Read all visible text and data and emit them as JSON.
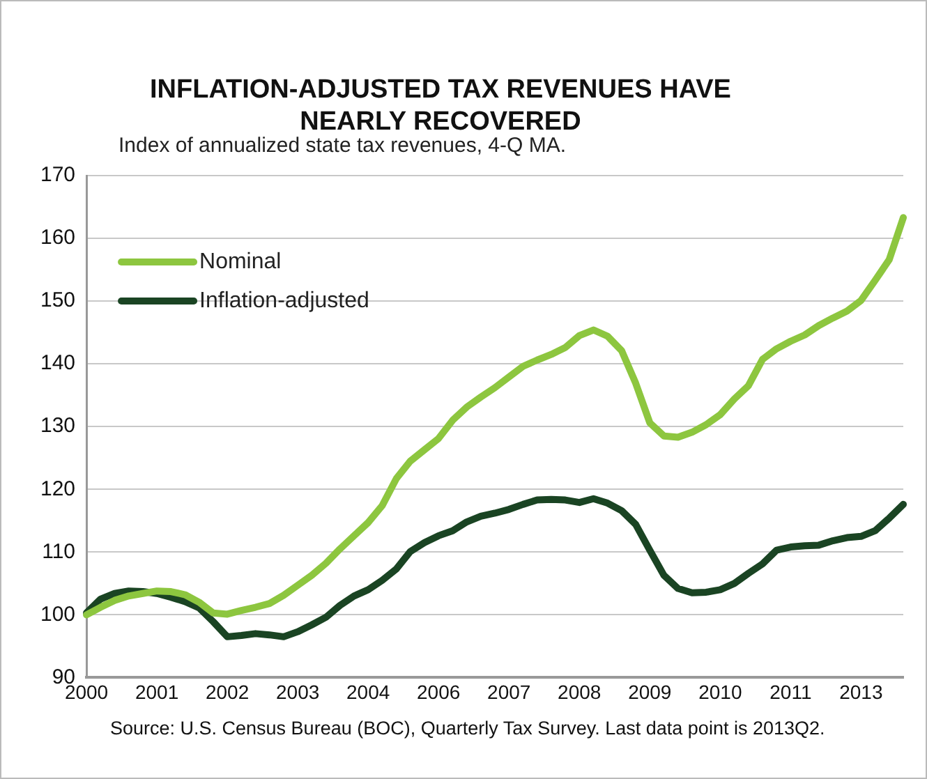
{
  "chart_data": {
    "type": "line",
    "title": "INFLATION-ADJUSTED TAX REVENUES HAVE NEARLY RECOVERED",
    "subtitle": "Index of annualized state tax revenues, 4-Q MA.",
    "annotations": [
      "Source: U.S. Census Bureau (BOC), Quarterly Tax Survey. Last data point is 2013Q2."
    ],
    "categories": [
      "2000",
      null,
      null,
      null,
      null,
      "2001",
      null,
      null,
      null,
      null,
      "2002",
      null,
      null,
      null,
      null,
      "2003",
      null,
      null,
      null,
      null,
      "2004",
      null,
      null,
      null,
      null,
      "2006",
      null,
      null,
      null,
      null,
      "2007",
      null,
      null,
      null,
      null,
      "2008",
      null,
      null,
      null,
      null,
      "2009",
      null,
      null,
      null,
      null,
      "2010",
      null,
      null,
      null,
      null,
      "2011",
      null,
      null,
      null,
      null,
      "2013",
      null,
      null,
      null
    ],
    "ylim": [
      90,
      170
    ],
    "yticks": [
      90,
      100,
      110,
      120,
      130,
      140,
      150,
      160,
      170
    ],
    "grid": "y",
    "legend": "top left",
    "marker": "none",
    "line_style": "solid",
    "series": [
      {
        "name": "Nominal",
        "color": "#8dc63f",
        "values": [
          100,
          101.2,
          102.3,
          103,
          103.4,
          103.8,
          103.7,
          103.2,
          102,
          100.3,
          100.1,
          100.7,
          101.2,
          101.8,
          103.1,
          104.7,
          106.3,
          108.2,
          110.5,
          112.6,
          114.7,
          117.4,
          121.7,
          124.5,
          126.3,
          128.1,
          131,
          133.1,
          134.7,
          136.2,
          137.9,
          139.6,
          140.6,
          141.5,
          142.6,
          144.5,
          145.4,
          144.4,
          142.1,
          136.9,
          130.6,
          128.5,
          128.3,
          129.1,
          130.3,
          131.9,
          134.4,
          136.5,
          140.7,
          142.4,
          143.6,
          144.6,
          146.1,
          147.3,
          148.4,
          150.1,
          153.3,
          156.6,
          163.3
        ]
      },
      {
        "name": "Inflation-adjusted",
        "color": "#1a4423",
        "values": [
          100.3,
          102.5,
          103.4,
          103.8,
          103.7,
          103.4,
          102.8,
          102.1,
          101.1,
          98.9,
          96.5,
          96.7,
          97,
          96.8,
          96.5,
          97.3,
          98.4,
          99.6,
          101.5,
          103,
          104,
          105.5,
          107.3,
          110.1,
          111.5,
          112.6,
          113.4,
          114.8,
          115.7,
          116.2,
          116.8,
          117.6,
          118.3,
          118.4,
          118.3,
          117.9,
          118.5,
          117.8,
          116.6,
          114.4,
          110.3,
          106.3,
          104.2,
          103.5,
          103.6,
          104,
          105,
          106.6,
          108.1,
          110.3,
          110.8,
          111,
          111.1,
          111.8,
          112.3,
          112.5,
          113.4,
          115.4,
          117.6
        ]
      }
    ]
  }
}
